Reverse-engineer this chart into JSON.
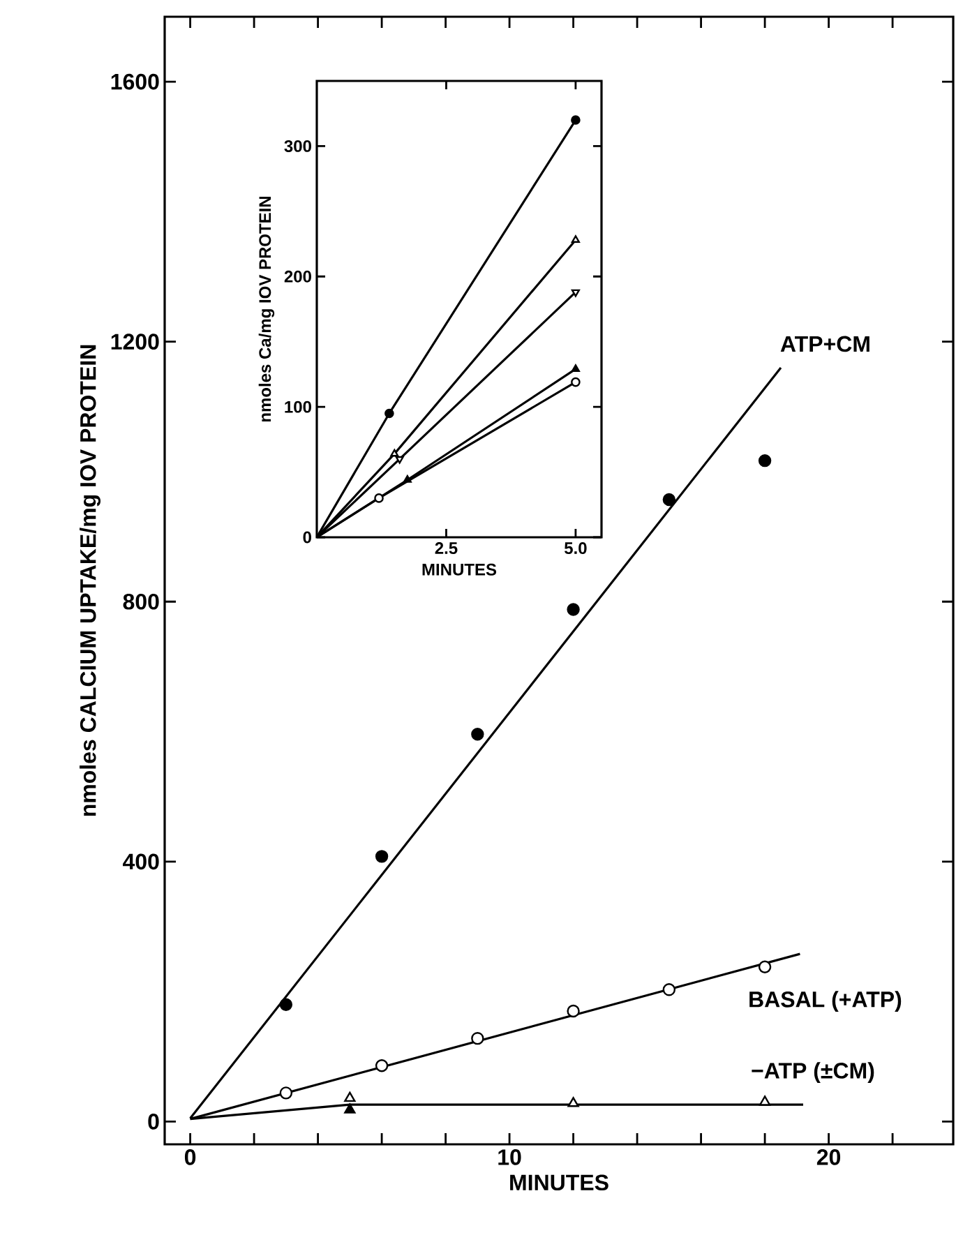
{
  "chart_data": [
    {
      "type": "scatter",
      "xlabel": "MINUTES",
      "ylabel": "nmoles CALCIUM UPTAKE/mg IOV PROTEIN",
      "xlim": [
        -0.8,
        23.9
      ],
      "ylim": [
        -35,
        1700
      ],
      "xticks": [
        0,
        {
          "value": 2,
          "label": null
        },
        {
          "value": 4,
          "label": null
        },
        {
          "value": 6,
          "label": null
        },
        {
          "value": 8,
          "label": null
        },
        10,
        {
          "value": 12,
          "label": null
        },
        {
          "value": 14,
          "label": null
        },
        {
          "value": 16,
          "label": null
        },
        {
          "value": 18,
          "label": null
        },
        20,
        {
          "value": 22,
          "label": null
        }
      ],
      "yticks": [
        0,
        400,
        800,
        1200,
        1600
      ],
      "series": [
        {
          "type": "scatter",
          "marker": "circle",
          "color": "#000000",
          "x": [
            3,
            6,
            9,
            12,
            15,
            18
          ],
          "values": [
            180,
            408,
            596,
            788,
            957,
            1017
          ]
        },
        {
          "type": "line",
          "color": "#000000",
          "x": [
            0,
            18.5
          ],
          "values": [
            5,
            1160
          ]
        },
        {
          "type": "scatter",
          "marker": "circle",
          "color": "#ffffff",
          "x": [
            3,
            6,
            9,
            12,
            15,
            18
          ],
          "values": [
            44,
            86,
            128,
            170,
            203,
            238
          ]
        },
        {
          "type": "line",
          "color": "#000000",
          "x": [
            0,
            19.1
          ],
          "values": [
            4,
            258
          ]
        },
        {
          "type": "scatter",
          "marker": "triangle",
          "color": "#ffffff",
          "x": [
            5,
            12,
            18
          ],
          "values": [
            36,
            28,
            30
          ]
        },
        {
          "type": "scatter",
          "marker": "triangle",
          "color": "#000000",
          "x": [
            5
          ],
          "values": [
            18
          ]
        },
        {
          "type": "line",
          "color": "#000000",
          "x": [
            0,
            5,
            19.2
          ],
          "values": [
            4,
            26,
            26
          ]
        }
      ],
      "annotations": [
        "ATP+CM",
        "BASAL (+ATP)",
        "−ATP (±CM)"
      ]
    },
    {
      "type": "line",
      "xlabel": "MINUTES",
      "ylabel": "nmoles Ca/mg IOV PROTEIN",
      "xlim": [
        0,
        5.5
      ],
      "ylim": [
        0,
        350
      ],
      "xticks": [
        2.5,
        {
          "value": 5,
          "label": "5.0"
        }
      ],
      "yticks": [
        0,
        100,
        200,
        300
      ],
      "series": [
        {
          "color": "#000000",
          "x": [
            0,
            1.4,
            5
          ],
          "values": [
            0,
            95,
            320
          ]
        },
        {
          "color": "#000000",
          "x": [
            0,
            1.5,
            5
          ],
          "values": [
            0,
            64,
            228
          ]
        },
        {
          "color": "#000000",
          "x": [
            0,
            1.6,
            5
          ],
          "values": [
            0,
            60,
            188
          ]
        },
        {
          "color": "#000000",
          "x": [
            0,
            1.75,
            5
          ],
          "values": [
            0,
            44,
            129
          ]
        },
        {
          "color": "#000000",
          "x": [
            0,
            1.2,
            5
          ],
          "values": [
            0,
            30,
            119
          ]
        },
        {
          "type": "scatter",
          "marker": "circle",
          "color": "#000000",
          "x": [
            1.4,
            5
          ],
          "values": [
            95,
            320
          ]
        },
        {
          "type": "scatter",
          "marker": "triangle",
          "color": "#ffffff",
          "x": [
            1.5,
            5
          ],
          "values": [
            64,
            228
          ]
        },
        {
          "type": "scatter",
          "marker": "triangle-down",
          "color": "#ffffff",
          "x": [
            1.6,
            5
          ],
          "values": [
            60,
            188
          ]
        },
        {
          "type": "scatter",
          "marker": "triangle",
          "color": "#000000",
          "x": [
            1.75,
            5
          ],
          "values": [
            44,
            129
          ]
        },
        {
          "type": "scatter",
          "marker": "circle",
          "color": "#ffffff",
          "x": [
            1.2,
            5
          ],
          "values": [
            30,
            119
          ]
        }
      ]
    }
  ]
}
